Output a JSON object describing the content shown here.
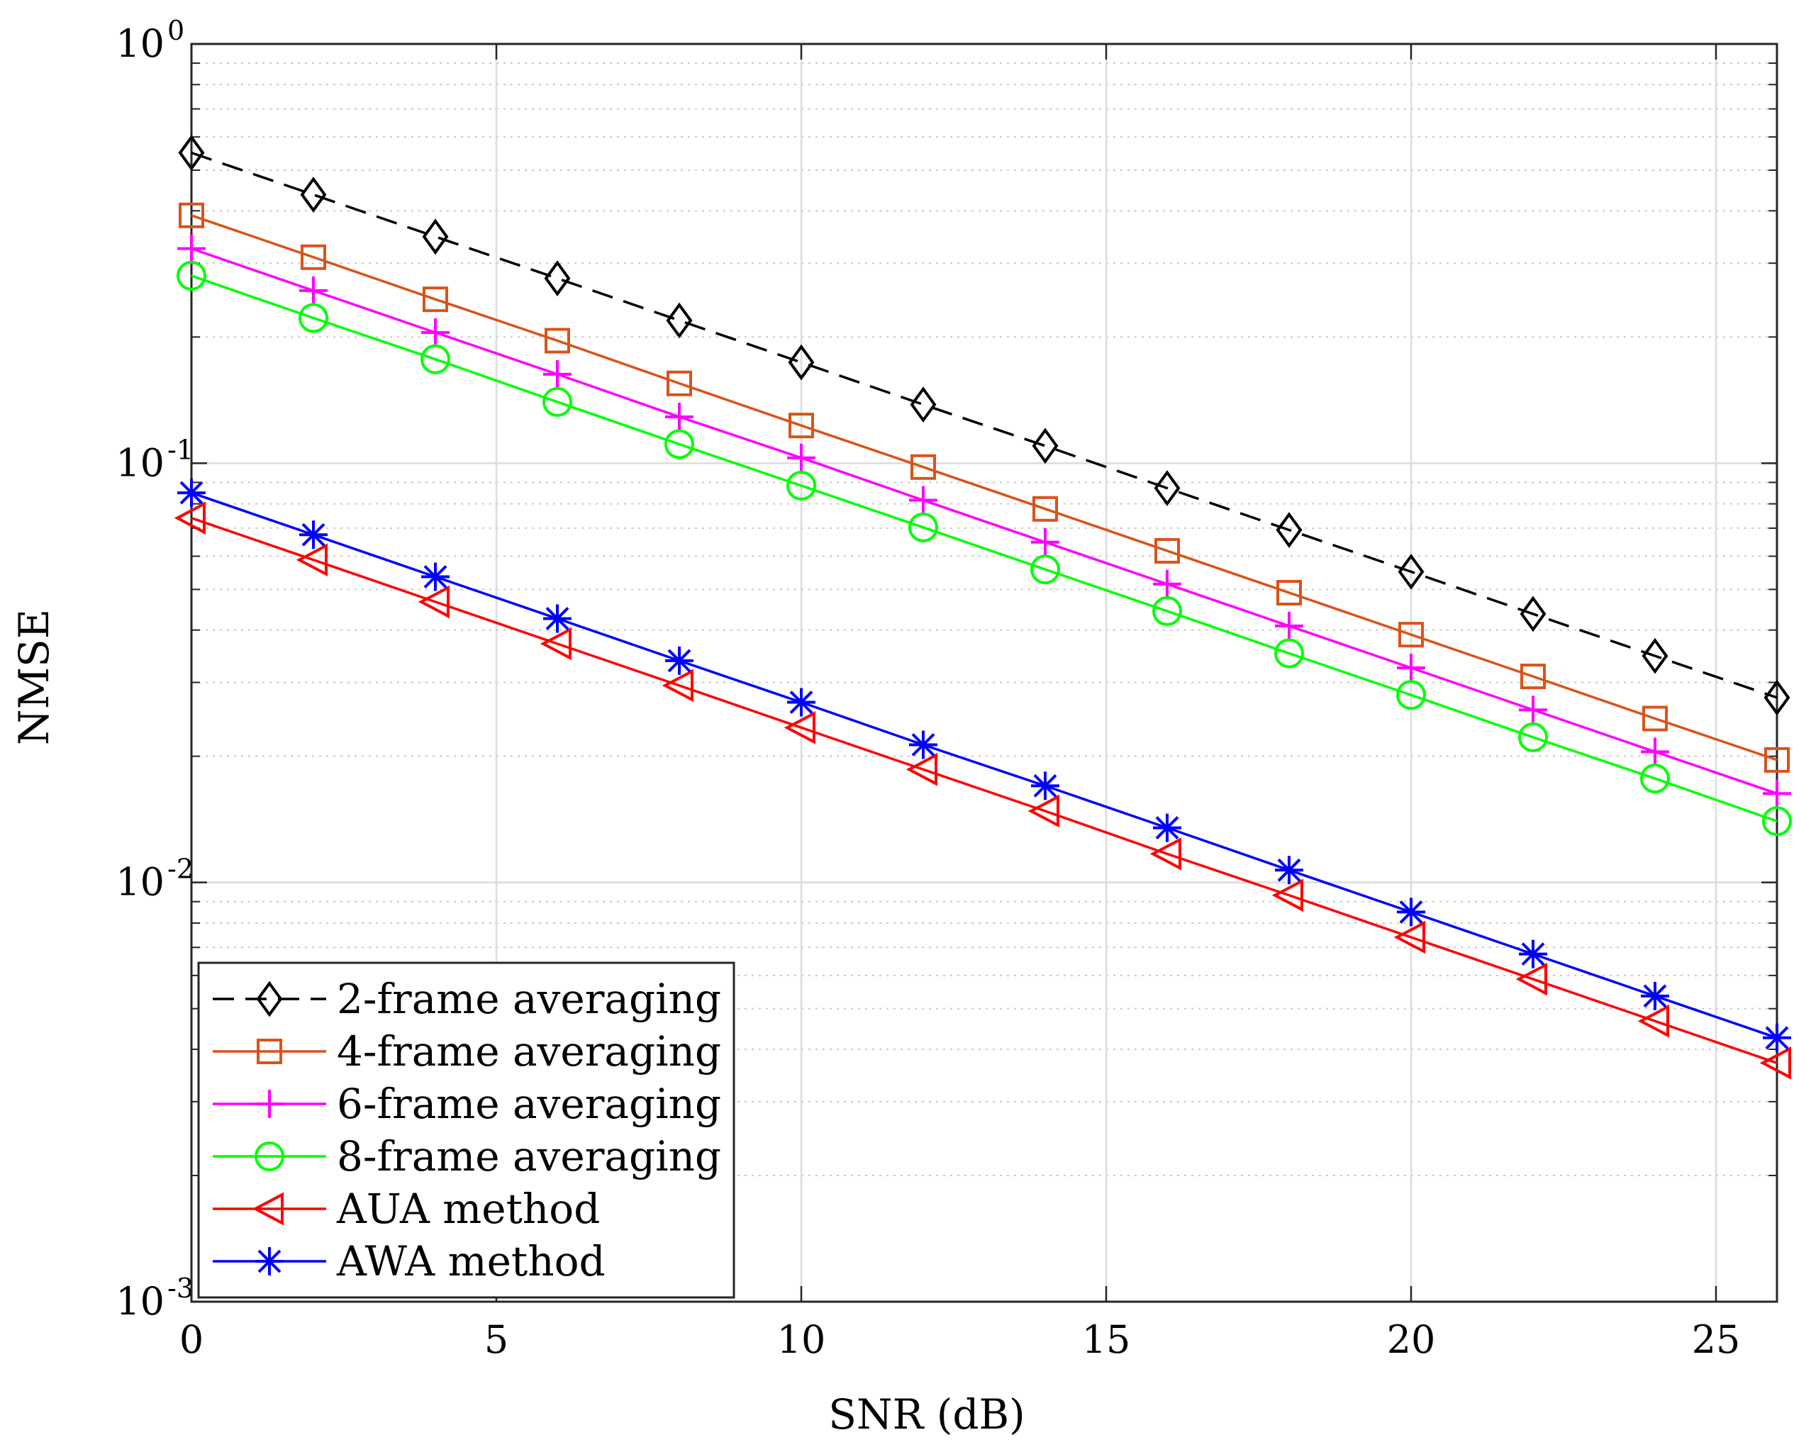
{
  "chart_data": {
    "type": "line",
    "title": "",
    "xlabel": "SNR (dB)",
    "ylabel": "NMSE",
    "yscale": "log",
    "xlim": [
      0,
      26
    ],
    "ylim": [
      0.001,
      1
    ],
    "grid": true,
    "legend_position": "bottom-left",
    "x": [
      0,
      2,
      4,
      6,
      8,
      10,
      12,
      14,
      16,
      18,
      20,
      22,
      24,
      26
    ],
    "x_ticks": [
      0,
      5,
      10,
      15,
      20,
      25
    ],
    "x_tick_labels": [
      "0",
      "5",
      "10",
      "15",
      "20",
      "25"
    ],
    "y_ticks": [
      {
        "value": 1,
        "base": "10",
        "exp": "0"
      },
      {
        "value": 0.1,
        "base": "10",
        "exp": "-1"
      },
      {
        "value": 0.01,
        "base": "10",
        "exp": "-2"
      },
      {
        "value": 0.001,
        "base": "10",
        "exp": "-3"
      }
    ],
    "series": [
      {
        "name": "2-frame averaging",
        "color": "#000000",
        "marker": "diamond",
        "dash": true,
        "values": [
          0.55,
          0.437,
          0.347,
          0.276,
          0.219,
          0.174,
          0.138,
          0.11,
          0.0872,
          0.0693,
          0.0551,
          0.0437,
          0.0347,
          0.0276
        ]
      },
      {
        "name": "4-frame averaging",
        "color": "#D95319",
        "marker": "square",
        "dash": false,
        "values": [
          0.39,
          0.31,
          0.246,
          0.196,
          0.155,
          0.123,
          0.0979,
          0.0778,
          0.0618,
          0.0491,
          0.039,
          0.031,
          0.0246,
          0.0196
        ]
      },
      {
        "name": "6-frame averaging",
        "color": "#FF00FF",
        "marker": "plus",
        "dash": false,
        "values": [
          0.325,
          0.258,
          0.205,
          0.163,
          0.129,
          0.103,
          0.0816,
          0.0648,
          0.0515,
          0.0409,
          0.0325,
          0.0258,
          0.0205,
          0.0163
        ]
      },
      {
        "name": "8-frame averaging",
        "color": "#00FF00",
        "marker": "circle",
        "dash": false,
        "values": [
          0.28,
          0.222,
          0.177,
          0.14,
          0.111,
          0.0884,
          0.0703,
          0.0558,
          0.0444,
          0.0352,
          0.028,
          0.0222,
          0.0177,
          0.014
        ]
      },
      {
        "name": "AUA method",
        "color": "#FF0000",
        "marker": "triangle-left",
        "dash": false,
        "values": [
          0.074,
          0.0588,
          0.0467,
          0.0371,
          0.0295,
          0.0234,
          0.0186,
          0.0148,
          0.0117,
          0.00932,
          0.0074,
          0.00588,
          0.00467,
          0.00371
        ]
      },
      {
        "name": "AWA method",
        "color": "#0000FF",
        "marker": "asterisk",
        "dash": false,
        "values": [
          0.085,
          0.0675,
          0.0536,
          0.0426,
          0.0338,
          0.0269,
          0.0213,
          0.017,
          0.0135,
          0.0107,
          0.0085,
          0.00675,
          0.00536,
          0.00426
        ]
      }
    ]
  }
}
